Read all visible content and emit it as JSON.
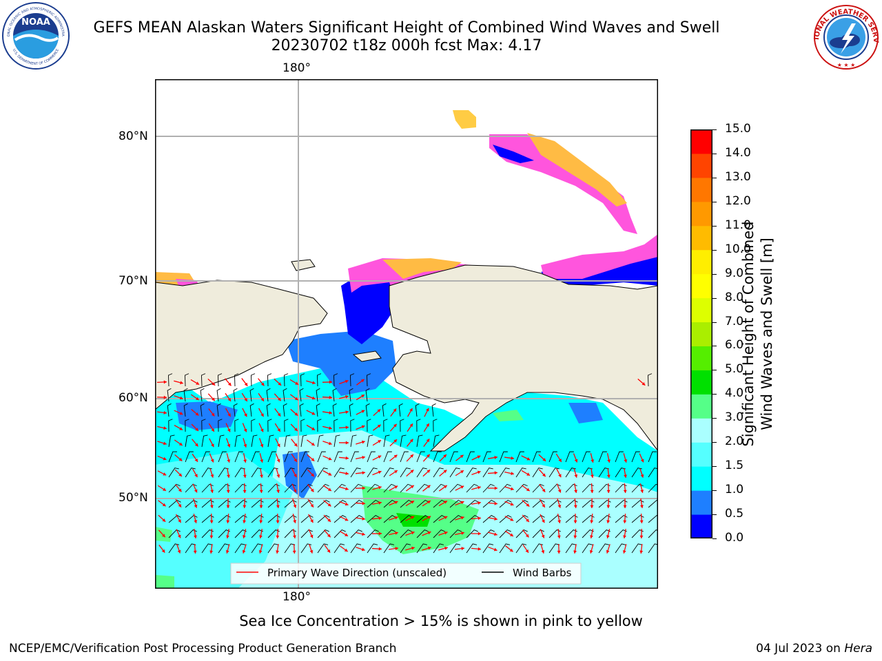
{
  "header": {
    "title_line1": "GEFS MEAN Alaskan Waters Significant Height of Combined Wind Waves and Swell",
    "title_line2": "20230702 t18z 000h fcst   Max: 4.17"
  },
  "logos": {
    "noaa_text": "NOAA",
    "noaa_ring_top": "NATIONAL OCEANIC AND ATMOSPHERIC ADMINISTRATION",
    "noaa_ring_bottom": "U.S. DEPARTMENT OF COMMERCE",
    "nws_ring": "NATIONAL WEATHER SERVICE"
  },
  "map": {
    "lon_label_top": "180°",
    "lon_label_bottom": "180°",
    "lat_labels": [
      "80°N",
      "70°N",
      "60°N",
      "50°N"
    ],
    "colors": {
      "ocean_base": "#00ffff",
      "land": "#efecdc",
      "coast": "#000000",
      "gridline": "#b0b0b0",
      "wave_arrow": "#ff0000",
      "wind_barb": "#000000"
    }
  },
  "legend": {
    "primary_wave": "Primary Wave Direction (unscaled)",
    "wind_barbs": "Wind Barbs"
  },
  "colorbar": {
    "label_line1": "Significant Height of Combined",
    "label_line2": "Wind Waves and Swell [m]",
    "ticks": [
      "0.0",
      "0.5",
      "1.0",
      "1.5",
      "2.0",
      "3.0",
      "4.0",
      "5.0",
      "6.0",
      "7.0",
      "8.0",
      "9.0",
      "10.0",
      "11.0",
      "12.0",
      "13.0",
      "14.0",
      "15.0"
    ],
    "colors": [
      "#0000ff",
      "#1e7fff",
      "#00ffff",
      "#55ffff",
      "#aaffff",
      "#55ff88",
      "#00e000",
      "#55ee00",
      "#aaee00",
      "#ddff00",
      "#ffff00",
      "#ffee00",
      "#ffbb00",
      "#ff9900",
      "#ff7700",
      "#ff4400",
      "#ff0000"
    ]
  },
  "caption": "Sea Ice Concentration > 15% is shown in pink to yellow",
  "footer": {
    "left": "NCEP/EMC/Verification Post Processing Product Generation Branch",
    "right_date": "04 Jul 2023 on ",
    "right_machine": "Hera"
  }
}
